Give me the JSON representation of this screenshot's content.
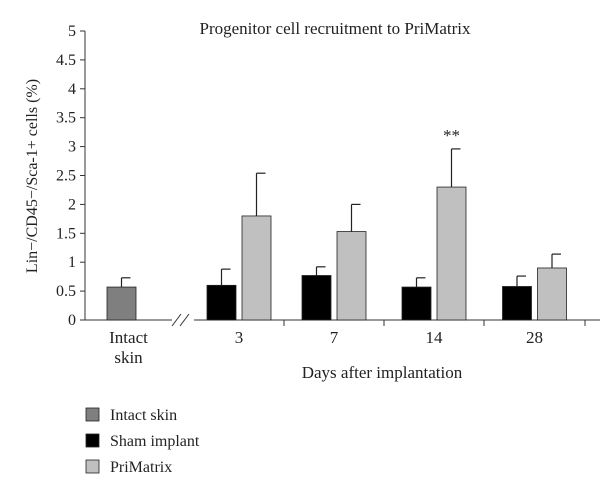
{
  "chart_data": {
    "type": "bar",
    "title": "Progenitor cell recruitment to PriMatrix",
    "ylabel": "Lin−/CD45−/Sca-1+ cells (%)",
    "xlabel": "Days after implantation",
    "ylim": [
      0,
      5
    ],
    "yticks": [
      "0",
      "0.5",
      "1",
      "1.5",
      "2",
      "2.5",
      "3",
      "3.5",
      "4",
      "4.5",
      "5"
    ],
    "categories": [
      "Intact skin",
      "3",
      "7",
      "14",
      "28"
    ],
    "intact_label_lines": [
      "Intact",
      "skin"
    ],
    "series": [
      {
        "name": "Intact skin",
        "color": "#7f7f7f",
        "values": [
          0.57,
          null,
          null,
          null,
          null
        ],
        "errors": [
          0.16,
          null,
          null,
          null,
          null
        ]
      },
      {
        "name": "Sham implant",
        "color": "#000000",
        "values": [
          null,
          0.6,
          0.77,
          0.57,
          0.58
        ],
        "errors": [
          null,
          0.28,
          0.15,
          0.16,
          0.18
        ]
      },
      {
        "name": "PriMatrix",
        "color": "#c0c0c0",
        "values": [
          null,
          1.8,
          1.53,
          2.3,
          0.9
        ],
        "errors": [
          null,
          0.74,
          0.47,
          0.66,
          0.24
        ]
      }
    ],
    "annotations": [
      {
        "category": "14",
        "series": "PriMatrix",
        "text": "**"
      }
    ],
    "axis_break": true,
    "grid": false,
    "legend_position": "bottom-left"
  }
}
